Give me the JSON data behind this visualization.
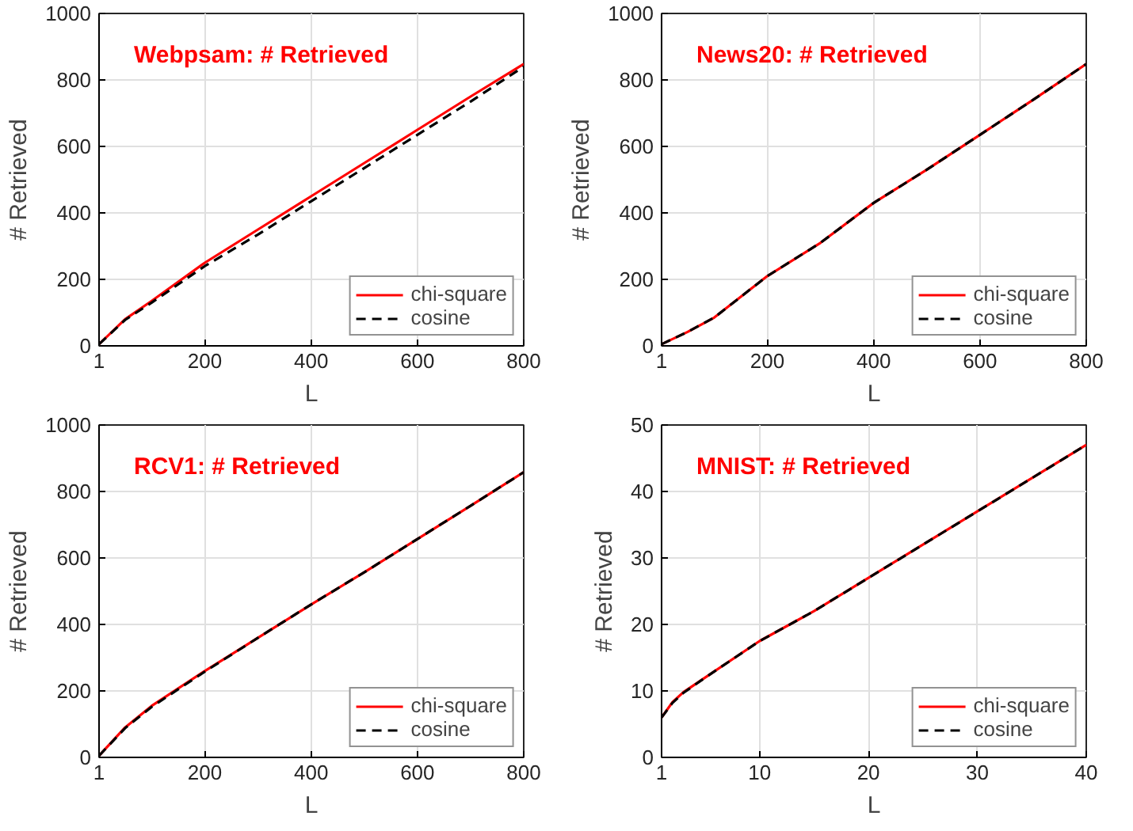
{
  "chart_data": [
    {
      "type": "line",
      "title": "Webpsam: # Retrieved",
      "xlabel": "L",
      "ylabel": "# Retrieved",
      "x": [
        1,
        50,
        100,
        200,
        300,
        400,
        500,
        600,
        700,
        800
      ],
      "xlim": [
        1,
        800
      ],
      "xticks": [
        1,
        200,
        400,
        600,
        800
      ],
      "ylim": [
        0,
        1000
      ],
      "yticks": [
        0,
        200,
        400,
        600,
        800,
        1000
      ],
      "grid": true,
      "legend": "bottom right",
      "series": [
        {
          "name": "chi-square",
          "color": "#ff0000",
          "line_style": "solid",
          "values": [
            5,
            80,
            135,
            250,
            350,
            450,
            550,
            650,
            750,
            848
          ]
        },
        {
          "name": "cosine",
          "color": "#000000",
          "line_style": "dashed",
          "values": [
            5,
            78,
            130,
            240,
            335,
            435,
            535,
            635,
            735,
            840
          ]
        }
      ]
    },
    {
      "type": "line",
      "title": "News20: # Retrieved",
      "xlabel": "L",
      "ylabel": "# Retrieved",
      "x": [
        1,
        50,
        100,
        200,
        300,
        400,
        500,
        600,
        700,
        800
      ],
      "xlim": [
        1,
        800
      ],
      "xticks": [
        1,
        200,
        400,
        600,
        800
      ],
      "ylim": [
        0,
        1000
      ],
      "yticks": [
        0,
        200,
        400,
        600,
        800,
        1000
      ],
      "grid": true,
      "legend": "bottom right",
      "series": [
        {
          "name": "chi-square",
          "color": "#ff0000",
          "line_style": "solid",
          "values": [
            5,
            42,
            85,
            210,
            310,
            430,
            530,
            635,
            740,
            848
          ]
        },
        {
          "name": "cosine",
          "color": "#000000",
          "line_style": "dashed",
          "values": [
            5,
            42,
            85,
            210,
            310,
            430,
            530,
            635,
            740,
            848
          ]
        }
      ]
    },
    {
      "type": "line",
      "title": "RCV1: # Retrieved",
      "xlabel": "L",
      "ylabel": "# Retrieved",
      "x": [
        1,
        50,
        100,
        200,
        300,
        400,
        500,
        600,
        700,
        800
      ],
      "xlim": [
        1,
        800
      ],
      "xticks": [
        1,
        200,
        400,
        600,
        800
      ],
      "ylim": [
        0,
        1000
      ],
      "yticks": [
        0,
        200,
        400,
        600,
        800,
        1000
      ],
      "grid": true,
      "legend": "bottom right",
      "series": [
        {
          "name": "chi-square",
          "color": "#ff0000",
          "line_style": "solid",
          "values": [
            5,
            90,
            155,
            260,
            360,
            460,
            557,
            657,
            757,
            858
          ]
        },
        {
          "name": "cosine",
          "color": "#000000",
          "line_style": "dashed",
          "values": [
            5,
            88,
            152,
            258,
            360,
            460,
            557,
            657,
            757,
            858
          ]
        }
      ]
    },
    {
      "type": "line",
      "title": "MNIST: # Retrieved",
      "xlabel": "L",
      "ylabel": "# Retrieved",
      "x": [
        1,
        2,
        3,
        5,
        10,
        15,
        20,
        25,
        30,
        35,
        40
      ],
      "xlim": [
        1,
        40
      ],
      "xticks": [
        1,
        10,
        20,
        30,
        40
      ],
      "ylim": [
        0,
        50
      ],
      "yticks": [
        0,
        10,
        20,
        30,
        40,
        50
      ],
      "grid": true,
      "legend": "bottom right",
      "series": [
        {
          "name": "chi-square",
          "color": "#ff0000",
          "line_style": "solid",
          "values": [
            6,
            8.3,
            9.8,
            12,
            17.5,
            22,
            27,
            32,
            37,
            42,
            47
          ]
        },
        {
          "name": "cosine",
          "color": "#000000",
          "line_style": "dashed",
          "values": [
            6,
            8.2,
            9.7,
            12,
            17.5,
            22,
            27,
            32,
            37,
            42,
            47
          ]
        }
      ]
    }
  ]
}
